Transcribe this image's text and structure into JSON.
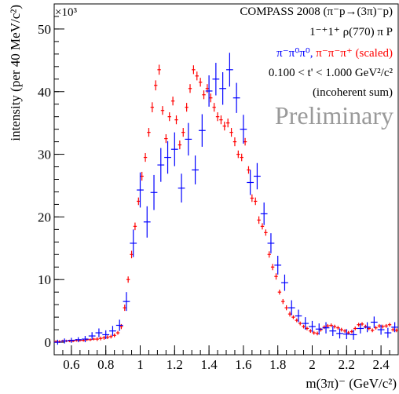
{
  "chart_data": {
    "type": "scatter",
    "title": "COMPASS 2008 (π⁻p→(3π)⁻p)",
    "exponent_label": "×10³",
    "xlabel": "m(3π)⁻ (GeV/c²)",
    "ylabel": "intensity (per 40 MeV/c²)",
    "xlim": [
      0.5,
      2.5
    ],
    "ylim": [
      -2,
      54
    ],
    "x_ticks": [
      0.6,
      0.8,
      1,
      1.2,
      1.4,
      1.6,
      1.8,
      2,
      2.2,
      2.4
    ],
    "x_tick_labels": [
      "0.6",
      "0.8",
      "1",
      "1.2",
      "1.4",
      "1.6",
      "1.8",
      "2",
      "2.2",
      "2.4"
    ],
    "y_ticks": [
      0,
      10,
      20,
      30,
      40,
      50
    ],
    "y_tick_labels": [
      "0",
      "10",
      "20",
      "30",
      "40",
      "50"
    ],
    "annotations": {
      "wave": "1⁻⁺1⁺ ρ(770) π P",
      "tprime": "0.100 < t' < 1.000 GeV²/c²",
      "sum": "(incoherent sum)",
      "prelim": "Preliminary"
    },
    "colors": {
      "neutral": "#0000ff",
      "charged": "#ff0000",
      "preliminary": "#9a9a9a"
    },
    "series": [
      {
        "name": "π⁻π⁰π⁰",
        "color": "#0000ff",
        "bin_width": 0.04,
        "x": [
          0.52,
          0.56,
          0.6,
          0.64,
          0.68,
          0.72,
          0.76,
          0.8,
          0.84,
          0.88,
          0.92,
          0.96,
          1.0,
          1.04,
          1.08,
          1.12,
          1.16,
          1.2,
          1.24,
          1.28,
          1.32,
          1.36,
          1.4,
          1.44,
          1.48,
          1.52,
          1.56,
          1.6,
          1.64,
          1.68,
          1.72,
          1.76,
          1.8,
          1.84,
          1.88,
          1.92,
          1.96,
          2.0,
          2.04,
          2.08,
          2.12,
          2.16,
          2.2,
          2.24,
          2.28,
          2.32,
          2.36,
          2.4,
          2.44,
          2.48
        ],
        "y": [
          0.0,
          0.2,
          0.3,
          0.4,
          0.5,
          1.0,
          1.5,
          1.2,
          1.8,
          2.7,
          6.5,
          15.8,
          24.3,
          19.2,
          23.9,
          28.3,
          29.5,
          30.8,
          24.6,
          32.4,
          27.5,
          33.8,
          40.1,
          42.0,
          40.5,
          43.5,
          39.0,
          34.0,
          25.5,
          26.5,
          20.5,
          15.8,
          12.3,
          9.5,
          5.5,
          4.2,
          3.0,
          2.5,
          2.1,
          2.3,
          1.8,
          1.4,
          1.3,
          1.2,
          2.2,
          2.4,
          3.2,
          2.0,
          1.5,
          2.4
        ],
        "err": [
          0.4,
          0.4,
          0.4,
          0.4,
          0.5,
          0.6,
          0.7,
          0.7,
          0.8,
          0.9,
          1.5,
          2.2,
          2.8,
          2.5,
          2.8,
          2.7,
          2.6,
          2.7,
          2.3,
          2.6,
          2.3,
          2.6,
          2.5,
          2.6,
          2.6,
          2.7,
          2.4,
          2.3,
          2.0,
          2.1,
          1.8,
          1.6,
          1.5,
          1.3,
          1.2,
          1.0,
          1.0,
          0.9,
          0.9,
          0.9,
          0.8,
          0.8,
          0.8,
          0.8,
          0.8,
          0.8,
          0.9,
          0.8,
          0.8,
          0.8
        ]
      },
      {
        "name": "π⁻π⁻π⁺ (scaled)",
        "color": "#ff0000",
        "bin_width": 0.02,
        "x": [
          0.51,
          0.53,
          0.55,
          0.57,
          0.59,
          0.61,
          0.63,
          0.65,
          0.67,
          0.69,
          0.71,
          0.73,
          0.75,
          0.77,
          0.79,
          0.81,
          0.83,
          0.85,
          0.87,
          0.89,
          0.91,
          0.93,
          0.95,
          0.97,
          0.99,
          1.01,
          1.03,
          1.05,
          1.07,
          1.09,
          1.11,
          1.13,
          1.15,
          1.17,
          1.19,
          1.21,
          1.23,
          1.25,
          1.27,
          1.29,
          1.31,
          1.33,
          1.35,
          1.37,
          1.39,
          1.41,
          1.43,
          1.45,
          1.47,
          1.49,
          1.51,
          1.53,
          1.55,
          1.57,
          1.59,
          1.61,
          1.63,
          1.65,
          1.67,
          1.69,
          1.71,
          1.73,
          1.75,
          1.77,
          1.79,
          1.81,
          1.83,
          1.85,
          1.87,
          1.89,
          1.91,
          1.93,
          1.95,
          1.97,
          1.99,
          2.01,
          2.03,
          2.05,
          2.07,
          2.09,
          2.11,
          2.13,
          2.15,
          2.17,
          2.19,
          2.21,
          2.23,
          2.25,
          2.27,
          2.29,
          2.31,
          2.33,
          2.35,
          2.37,
          2.39,
          2.41,
          2.43,
          2.45,
          2.47,
          2.49
        ],
        "y": [
          0.1,
          0.1,
          0.2,
          0.2,
          0.2,
          0.2,
          0.3,
          0.3,
          0.3,
          0.4,
          0.4,
          0.5,
          0.5,
          0.6,
          0.7,
          0.8,
          0.9,
          1.1,
          1.5,
          2.5,
          5.5,
          10.0,
          14.0,
          18.5,
          22.5,
          26.5,
          29.5,
          33.5,
          37.5,
          41.0,
          43.5,
          37.0,
          32.5,
          36.0,
          38.5,
          35.5,
          31.5,
          33.5,
          37.5,
          40.5,
          43.5,
          42.5,
          41.5,
          39.5,
          40.5,
          39.0,
          37.5,
          36.0,
          35.5,
          34.5,
          35.0,
          33.5,
          32.0,
          30.0,
          29.5,
          32.0,
          27.5,
          23.0,
          22.5,
          19.5,
          18.5,
          17.5,
          14.0,
          12.0,
          10.5,
          8.0,
          6.5,
          5.5,
          4.5,
          4.0,
          3.5,
          3.0,
          2.5,
          2.2,
          1.8,
          1.5,
          1.4,
          2.0,
          2.4,
          2.6,
          2.7,
          2.5,
          2.3,
          2.0,
          1.8,
          1.5,
          1.7,
          2.2,
          2.8,
          2.9,
          2.5,
          2.2,
          1.9,
          2.3,
          2.6,
          2.5,
          2.6,
          2.8,
          2.0,
          1.9
        ],
        "err": [
          0.2,
          0.2,
          0.2,
          0.2,
          0.2,
          0.2,
          0.2,
          0.2,
          0.2,
          0.2,
          0.2,
          0.2,
          0.3,
          0.3,
          0.3,
          0.3,
          0.3,
          0.3,
          0.3,
          0.4,
          0.5,
          0.5,
          0.6,
          0.6,
          0.6,
          0.7,
          0.7,
          0.7,
          0.8,
          0.8,
          0.8,
          0.7,
          0.7,
          0.7,
          0.7,
          0.7,
          0.7,
          0.7,
          0.7,
          0.7,
          0.7,
          0.7,
          0.7,
          0.7,
          0.7,
          0.7,
          0.7,
          0.7,
          0.7,
          0.7,
          0.7,
          0.7,
          0.7,
          0.6,
          0.6,
          0.6,
          0.6,
          0.6,
          0.6,
          0.6,
          0.5,
          0.5,
          0.5,
          0.5,
          0.5,
          0.4,
          0.4,
          0.4,
          0.4,
          0.3,
          0.3,
          0.3,
          0.3,
          0.3,
          0.3,
          0.3,
          0.3,
          0.3,
          0.3,
          0.3,
          0.3,
          0.3,
          0.3,
          0.3,
          0.3,
          0.3,
          0.3,
          0.3,
          0.3,
          0.3,
          0.3,
          0.3,
          0.3,
          0.3,
          0.3,
          0.3,
          0.3,
          0.3,
          0.3,
          0.3
        ]
      }
    ]
  }
}
